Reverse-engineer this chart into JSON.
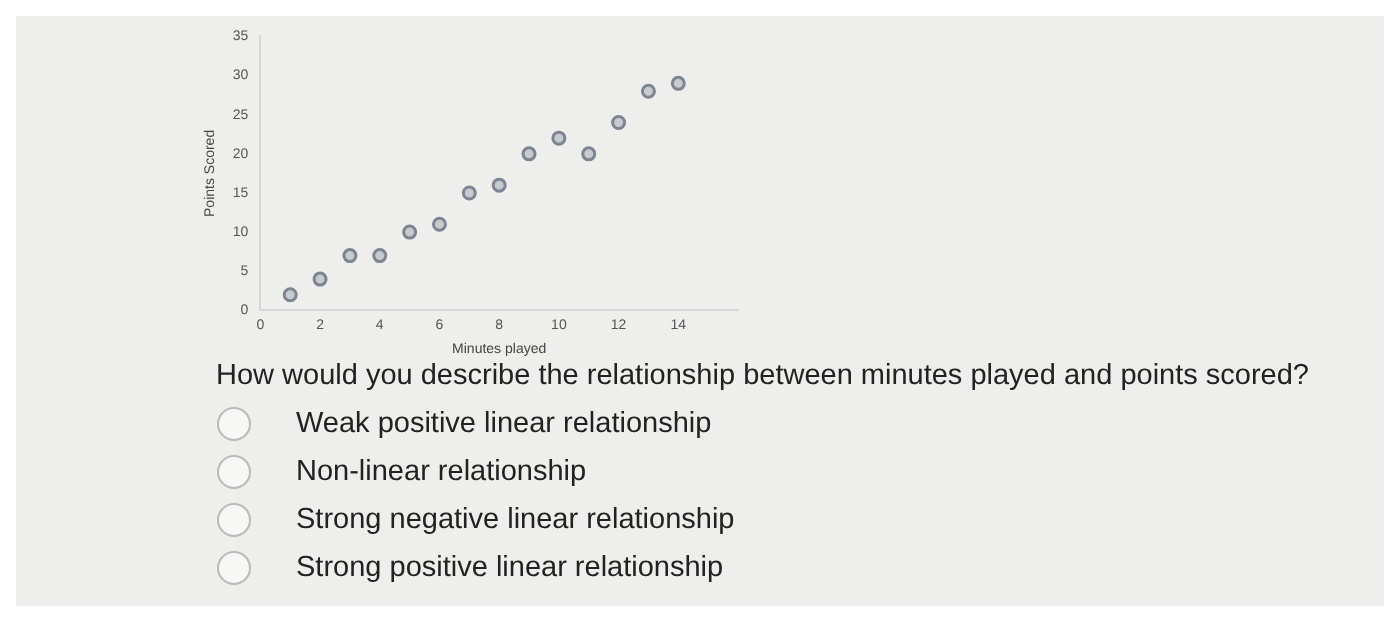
{
  "chart_data": {
    "type": "scatter",
    "xlabel": "Minutes played",
    "ylabel": "Points Scored",
    "x": [
      1,
      2,
      3,
      4,
      5,
      6,
      7,
      8,
      9,
      10,
      11,
      12,
      13,
      14
    ],
    "series": [
      {
        "color": "#7d8593",
        "values": [
          2,
          4,
          7,
          7,
          10,
          11,
          15,
          16,
          20,
          22,
          20,
          24,
          28,
          29
        ]
      }
    ],
    "xlim": [
      0,
      16
    ],
    "xticks": [
      0,
      2,
      4,
      6,
      8,
      10,
      12,
      14
    ],
    "ylim": [
      0,
      35
    ],
    "yticks": [
      0,
      5,
      10,
      15,
      20,
      25,
      30,
      35
    ],
    "grid": false,
    "legend": false,
    "marker": "circle",
    "annotations": [
      "How would you describe the relationship between minutes played and points scored?",
      "Weak positive linear relationship",
      "Non-linear relationship",
      "Strong negative linear relationship",
      "Strong positive linear relationship"
    ]
  }
}
